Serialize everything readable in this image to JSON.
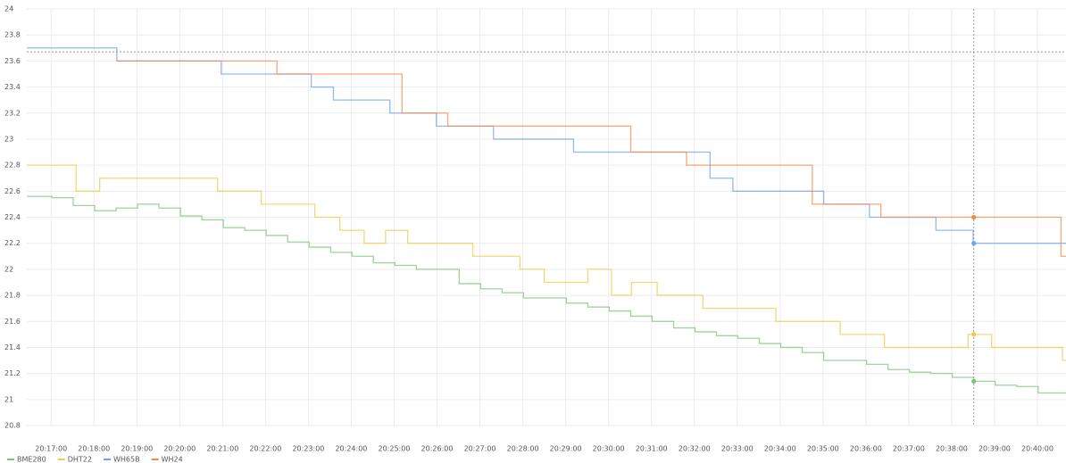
{
  "chart_data": {
    "type": "step-line",
    "xlim": [
      "20:16:26",
      "20:40:40"
    ],
    "xticks": [
      "20:17:00",
      "20:18:00",
      "20:19:00",
      "20:20:00",
      "20:21:00",
      "20:22:00",
      "20:23:00",
      "20:24:00",
      "20:25:00",
      "20:26:00",
      "20:27:00",
      "20:28:00",
      "20:29:00",
      "20:30:00",
      "20:31:00",
      "20:32:00",
      "20:33:00",
      "20:34:00",
      "20:35:00",
      "20:36:00",
      "20:37:00",
      "20:38:00",
      "20:39:00",
      "20:40:00"
    ],
    "ylim": [
      20.8,
      24
    ],
    "yticks": [
      20.8,
      21,
      21.2,
      21.4,
      21.6,
      21.8,
      22,
      22.2,
      22.4,
      22.6,
      22.8,
      23,
      23.2,
      23.4,
      23.6,
      23.8,
      24
    ],
    "grid": true,
    "legend": "bottom-left",
    "crosshair": {
      "x": "20:38:31",
      "y": 23.67
    },
    "series": [
      {
        "name": "BME280",
        "color": "#7cc576",
        "x": [
          "20:16:26",
          "20:17:01",
          "20:17:31",
          "20:18:01",
          "20:18:31",
          "20:19:01",
          "20:19:31",
          "20:20:01",
          "20:20:31",
          "20:21:01",
          "20:21:31",
          "20:22:01",
          "20:22:31",
          "20:23:01",
          "20:23:31",
          "20:24:01",
          "20:24:31",
          "20:25:01",
          "20:25:31",
          "20:26:31",
          "20:27:01",
          "20:27:31",
          "20:28:01",
          "20:29:01",
          "20:29:31",
          "20:30:01",
          "20:30:31",
          "20:31:01",
          "20:31:31",
          "20:32:01",
          "20:32:31",
          "20:33:01",
          "20:33:31",
          "20:34:01",
          "20:34:31",
          "20:35:01",
          "20:36:01",
          "20:36:31",
          "20:37:01",
          "20:37:31",
          "20:38:01",
          "20:38:31",
          "20:39:01",
          "20:39:31",
          "20:40:01"
        ],
        "values": [
          22.56,
          22.55,
          22.49,
          22.45,
          22.47,
          22.5,
          22.47,
          22.41,
          22.38,
          22.32,
          22.3,
          22.26,
          22.21,
          22.17,
          22.13,
          22.1,
          22.05,
          22.03,
          22.0,
          21.89,
          21.85,
          21.82,
          21.78,
          21.74,
          21.71,
          21.68,
          21.64,
          21.6,
          21.55,
          21.52,
          21.49,
          21.47,
          21.43,
          21.4,
          21.36,
          21.3,
          21.27,
          21.23,
          21.21,
          21.2,
          21.17,
          21.14,
          21.11,
          21.1,
          21.05
        ]
      },
      {
        "name": "DHT22",
        "color": "#f2c94c",
        "x": [
          "20:16:26",
          "20:17:35",
          "20:18:08",
          "20:20:53",
          "20:21:54",
          "20:23:09",
          "20:23:44",
          "20:24:18",
          "20:24:48",
          "20:25:19",
          "20:26:50",
          "20:27:56",
          "20:28:30",
          "20:29:31",
          "20:30:04",
          "20:30:32",
          "20:31:08",
          "20:32:12",
          "20:33:54",
          "20:35:24",
          "20:36:26",
          "20:38:23",
          "20:38:56",
          "20:40:35"
        ],
        "values": [
          22.8,
          22.6,
          22.7,
          22.6,
          22.5,
          22.4,
          22.3,
          22.2,
          22.3,
          22.2,
          22.1,
          22.0,
          21.9,
          22.0,
          21.8,
          21.9,
          21.8,
          21.7,
          21.6,
          21.5,
          21.4,
          21.5,
          21.4,
          21.3
        ]
      },
      {
        "name": "WH65B",
        "color": "#6fa3f0",
        "x": [
          "20:16:26",
          "20:18:32",
          "20:20:58",
          "20:23:04",
          "20:23:35",
          "20:24:54",
          "20:25:59",
          "20:27:19",
          "20:29:11",
          "20:32:22",
          "20:32:54",
          "20:35:01",
          "20:36:05",
          "20:37:38",
          "20:38:30"
        ],
        "values": [
          23.7,
          23.6,
          23.5,
          23.4,
          23.3,
          23.2,
          23.1,
          23.0,
          22.9,
          22.7,
          22.6,
          22.5,
          22.4,
          22.3,
          22.2
        ]
      },
      {
        "name": "WH24",
        "color": "#f5894b",
        "x": [
          "20:18:32",
          "20:22:16",
          "20:25:11",
          "20:26:15",
          "20:30:31",
          "20:31:49",
          "20:34:45",
          "20:36:21",
          "20:40:33"
        ],
        "values": [
          23.6,
          23.5,
          23.2,
          23.1,
          22.9,
          22.8,
          22.5,
          22.4,
          22.1
        ]
      }
    ]
  }
}
